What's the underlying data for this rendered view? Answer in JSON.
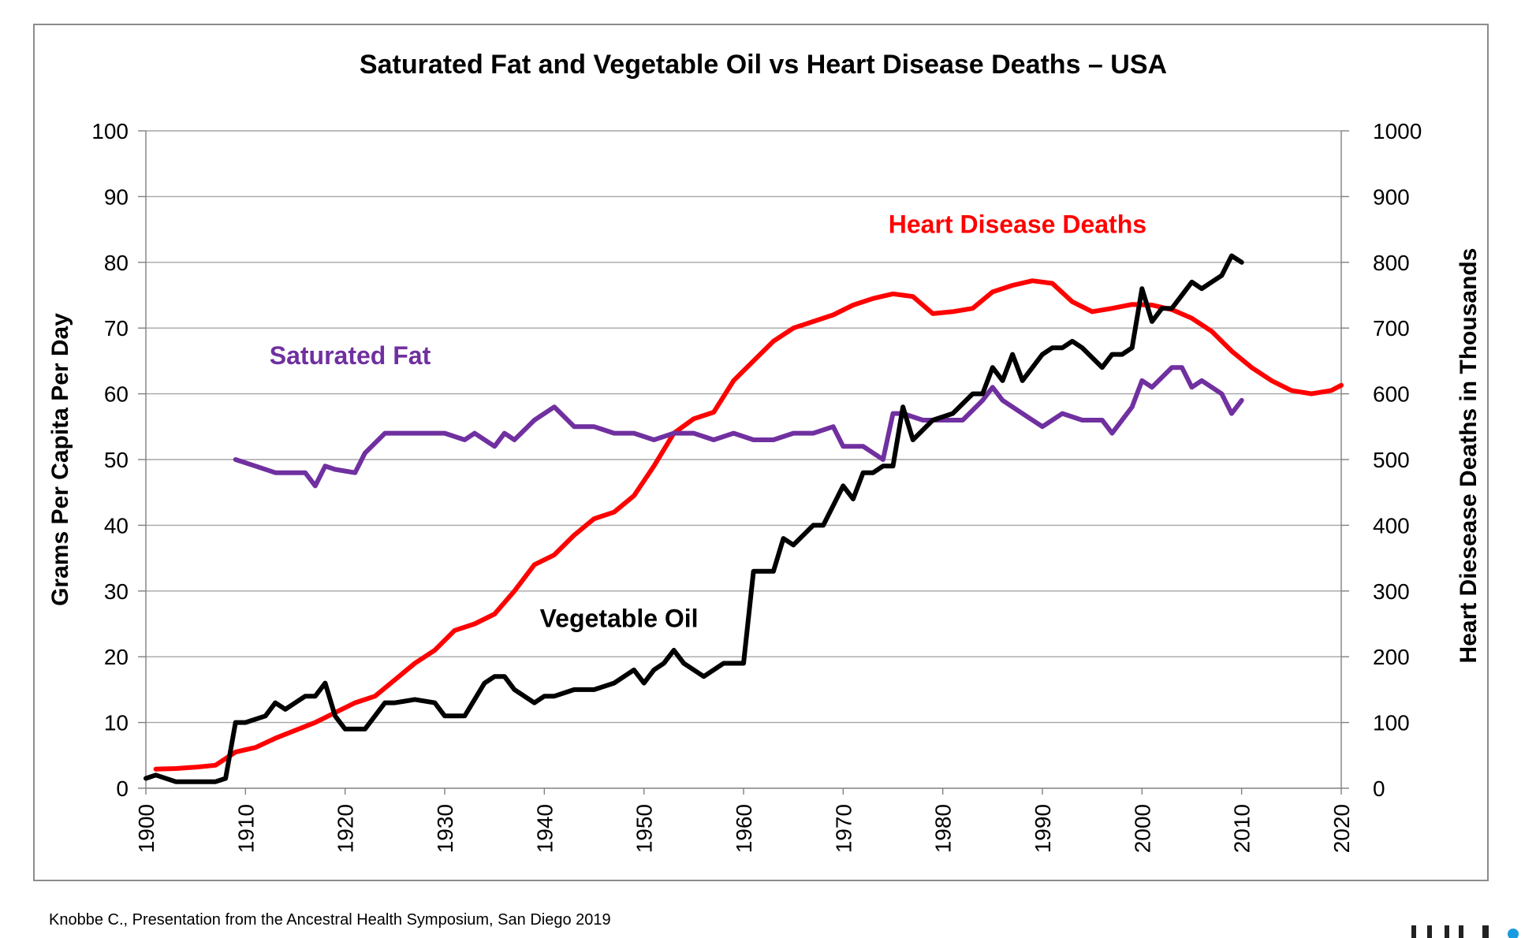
{
  "chart_data": {
    "type": "line",
    "title": "Saturated Fat and Vegetable Oil vs Heart Disease Deaths – USA",
    "ylabel": "Grams Per Capita Per Day",
    "y2label": "Heart Diesease Deaths in Thousands",
    "xlim": [
      1900,
      2020
    ],
    "ylim": [
      0,
      100
    ],
    "y2lim": [
      0,
      1000
    ],
    "x_ticks": [
      "1900",
      "1910",
      "1920",
      "1930",
      "1940",
      "1950",
      "1960",
      "1970",
      "1980",
      "1990",
      "2000",
      "2010",
      "2020"
    ],
    "y_ticks": [
      "0",
      "10",
      "20",
      "30",
      "40",
      "50",
      "60",
      "70",
      "80",
      "90",
      "100"
    ],
    "y2_ticks": [
      "0",
      "100",
      "200",
      "300",
      "400",
      "500",
      "600",
      "700",
      "800",
      "900",
      "1000"
    ],
    "grid": true,
    "legend": "inline labels",
    "series": [
      {
        "name": "Heart Disease Deaths",
        "axis": "right",
        "color": "#ff0000",
        "x": [
          1901,
          1903,
          1905,
          1907,
          1909,
          1911,
          1913,
          1915,
          1917,
          1919,
          1921,
          1923,
          1925,
          1927,
          1929,
          1931,
          1933,
          1935,
          1937,
          1939,
          1941,
          1943,
          1945,
          1947,
          1949,
          1951,
          1953,
          1955,
          1957,
          1959,
          1961,
          1963,
          1965,
          1967,
          1969,
          1971,
          1973,
          1975,
          1977,
          1979,
          1981,
          1983,
          1985,
          1987,
          1989,
          1991,
          1993,
          1995,
          1997,
          1999,
          2001,
          2003,
          2005,
          2007,
          2009,
          2011,
          2013,
          2015,
          2017,
          2019,
          2020
        ],
        "y": [
          29,
          30,
          32,
          35,
          55,
          62,
          76,
          88,
          100,
          115,
          130,
          140,
          165,
          190,
          210,
          240,
          250,
          265,
          300,
          340,
          355,
          385,
          410,
          420,
          445,
          490,
          540,
          562,
          572,
          620,
          650,
          680,
          700,
          710,
          720,
          735,
          745,
          752,
          748,
          722,
          725,
          730,
          755,
          765,
          772,
          768,
          740,
          725,
          730,
          736,
          735,
          728,
          715,
          695,
          665,
          640,
          620,
          605,
          600,
          605,
          613
        ]
      },
      {
        "name": "Saturated Fat",
        "axis": "left",
        "color": "#7030a0",
        "x": [
          1909,
          1911,
          1913,
          1915,
          1916,
          1917,
          1918,
          1919,
          1921,
          1922,
          1924,
          1926,
          1928,
          1930,
          1932,
          1933,
          1935,
          1936,
          1937,
          1939,
          1940,
          1941,
          1943,
          1945,
          1947,
          1949,
          1951,
          1953,
          1955,
          1957,
          1959,
          1961,
          1963,
          1965,
          1967,
          1969,
          1970,
          1972,
          1974,
          1975,
          1976,
          1978,
          1980,
          1982,
          1984,
          1985,
          1986,
          1988,
          1990,
          1992,
          1994,
          1996,
          1997,
          1999,
          2000,
          2001,
          2003,
          2004,
          2005,
          2006,
          2008,
          2009,
          2010
        ],
        "y": [
          50,
          49,
          48,
          48,
          48,
          46,
          49,
          48.5,
          48,
          51,
          54,
          54,
          54,
          54,
          53,
          54,
          52,
          54,
          53,
          56,
          57,
          58,
          55,
          55,
          54,
          54,
          53,
          54,
          54,
          53,
          54,
          53,
          53,
          54,
          54,
          55,
          52,
          52,
          50,
          57,
          57,
          56,
          56,
          56,
          59,
          61,
          59,
          57,
          55,
          57,
          56,
          56,
          54,
          58,
          62,
          61,
          64,
          64,
          61,
          62,
          60,
          57,
          59
        ]
      },
      {
        "name": "Vegetable Oil",
        "axis": "left",
        "color": "#000000",
        "x": [
          1900,
          1901,
          1903,
          1905,
          1907,
          1908,
          1909,
          1910,
          1912,
          1913,
          1914,
          1916,
          1917,
          1918,
          1919,
          1920,
          1922,
          1924,
          1925,
          1927,
          1929,
          1930,
          1932,
          1934,
          1935,
          1936,
          1937,
          1939,
          1940,
          1941,
          1943,
          1945,
          1947,
          1949,
          1950,
          1951,
          1952,
          1953,
          1954,
          1956,
          1958,
          1959,
          1960,
          1961,
          1963,
          1964,
          1965,
          1967,
          1968,
          1970,
          1971,
          1972,
          1973,
          1974,
          1975,
          1976,
          1977,
          1979,
          1981,
          1983,
          1984,
          1985,
          1986,
          1987,
          1988,
          1990,
          1991,
          1992,
          1993,
          1994,
          1996,
          1997,
          1998,
          1999,
          2000,
          2001,
          2002,
          2003,
          2004,
          2005,
          2006,
          2007,
          2008,
          2009,
          2010
        ],
        "y": [
          1.5,
          2,
          1,
          1,
          1,
          1.5,
          10,
          10,
          11,
          13,
          12,
          14,
          14,
          16,
          11,
          9,
          9,
          13,
          13,
          13.5,
          13,
          11,
          11,
          16,
          17,
          17,
          15,
          13,
          14,
          14,
          15,
          15,
          16,
          18,
          16,
          18,
          19,
          21,
          19,
          17,
          19,
          19,
          19,
          33,
          33,
          38,
          37,
          40,
          40,
          46,
          44,
          48,
          48,
          49,
          49,
          58,
          53,
          56,
          57,
          60,
          60,
          64,
          62,
          66,
          62,
          66,
          67,
          67,
          68,
          67,
          64,
          66,
          66,
          67,
          76,
          71,
          73,
          73,
          75,
          77,
          76,
          77,
          78,
          81,
          80
        ]
      }
    ],
    "annotations": [
      {
        "text": "Heart Disease Deaths",
        "color": "#ff0000"
      },
      {
        "text": "Saturated Fat",
        "color": "#7030a0"
      },
      {
        "text": "Vegetable  Oil",
        "color": "#000000"
      }
    ]
  },
  "caption": "Knobbe C., Presentation from the Ancestral Health Symposium, San Diego 2019"
}
